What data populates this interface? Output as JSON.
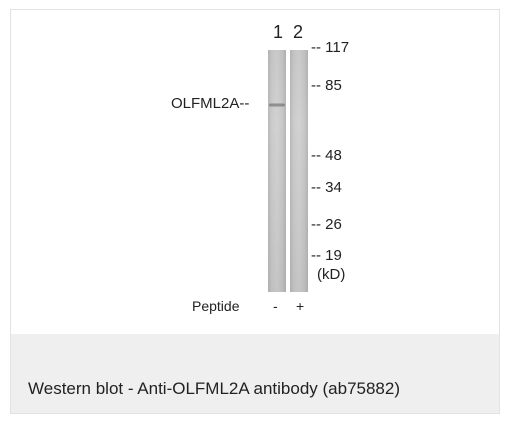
{
  "figure": {
    "lanes": [
      "1",
      "2"
    ],
    "protein_label": "OLFML2A--",
    "markers": [
      "-- 117",
      "-- 85",
      "-- 48",
      "-- 34",
      "-- 26",
      "-- 19"
    ],
    "unit": "(kD)",
    "peptide_label": "Peptide",
    "peptide_lane1": "-",
    "peptide_lane2": "+"
  },
  "caption": "Western blot - Anti-OLFML2A antibody (ab75882)"
}
